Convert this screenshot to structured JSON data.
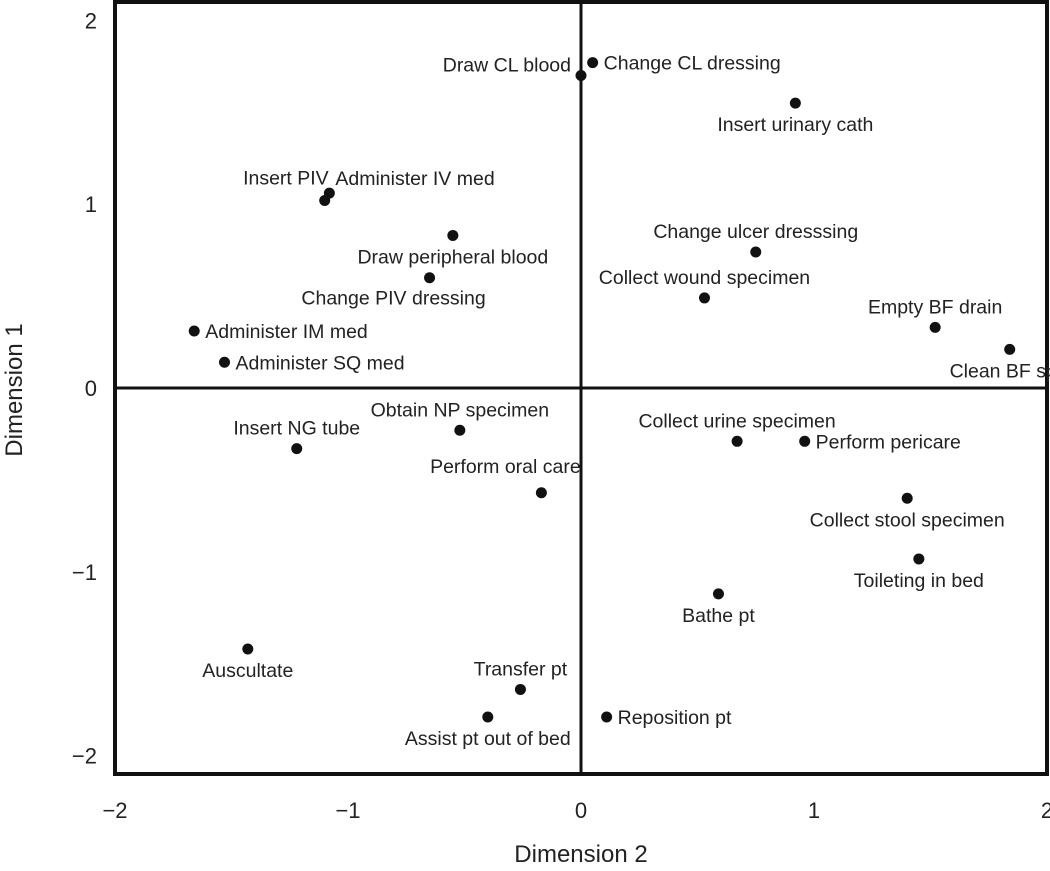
{
  "chart_data": {
    "type": "scatter",
    "title": "",
    "xlabel": "Dimension 2",
    "ylabel": "Dimension 1",
    "xlim": [
      -2,
      2
    ],
    "ylim": [
      -2.1,
      2.1
    ],
    "xticks": [
      -2,
      -1,
      0,
      1,
      2
    ],
    "yticks": [
      -2,
      -1,
      0,
      1,
      2
    ],
    "xtick_labels": [
      "−2",
      "−1",
      "0",
      "1",
      "2"
    ],
    "ytick_labels": [
      "−2",
      "−1",
      "0",
      "1",
      "2"
    ],
    "reference_lines": {
      "x": 0,
      "y": 0
    },
    "colors": {
      "point": "#111111",
      "frame": "#111111",
      "text": "#222222"
    },
    "points": [
      {
        "label": "Draw CL blood",
        "x": 0.0,
        "y": 1.7,
        "label_pos": "left"
      },
      {
        "label": "Change CL dressing",
        "x": 0.05,
        "y": 1.77,
        "label_pos": "right"
      },
      {
        "label": "Insert urinary cath",
        "x": 0.92,
        "y": 1.55,
        "label_pos": "below"
      },
      {
        "label": "Insert PIV",
        "x": -1.1,
        "y": 1.02,
        "label_pos": "upper-left"
      },
      {
        "label": "Administer IV med",
        "x": -1.08,
        "y": 1.06,
        "label_pos": "upper-right"
      },
      {
        "label": "Change ulcer dresssing",
        "x": 0.75,
        "y": 0.74,
        "label_pos": "above"
      },
      {
        "label": "Draw peripheral blood",
        "x": -0.55,
        "y": 0.83,
        "label_pos": "below"
      },
      {
        "label": "Change PIV dressing",
        "x": -0.65,
        "y": 0.6,
        "label_pos": "below-left"
      },
      {
        "label": "Collect wound specimen",
        "x": 0.53,
        "y": 0.49,
        "label_pos": "above"
      },
      {
        "label": "Empty BF drain",
        "x": 1.52,
        "y": 0.33,
        "label_pos": "above"
      },
      {
        "label": "Clean BF spill",
        "x": 1.84,
        "y": 0.21,
        "label_pos": "below"
      },
      {
        "label": "Administer IM med",
        "x": -1.66,
        "y": 0.31,
        "label_pos": "right"
      },
      {
        "label": "Administer SQ med",
        "x": -1.53,
        "y": 0.14,
        "label_pos": "right"
      },
      {
        "label": "Insert NG tube",
        "x": -1.22,
        "y": -0.33,
        "label_pos": "above"
      },
      {
        "label": "Obtain NP specimen",
        "x": -0.52,
        "y": -0.23,
        "label_pos": "above"
      },
      {
        "label": "Perform oral care",
        "x": -0.17,
        "y": -0.57,
        "label_pos": "above-left"
      },
      {
        "label": "Collect urine specimen",
        "x": 0.67,
        "y": -0.29,
        "label_pos": "above"
      },
      {
        "label": "Perform pericare",
        "x": 0.96,
        "y": -0.29,
        "label_pos": "right"
      },
      {
        "label": "Collect stool specimen",
        "x": 1.4,
        "y": -0.6,
        "label_pos": "below"
      },
      {
        "label": "Toileting in bed",
        "x": 1.45,
        "y": -0.93,
        "label_pos": "below"
      },
      {
        "label": "Bathe pt",
        "x": 0.59,
        "y": -1.12,
        "label_pos": "below"
      },
      {
        "label": "Auscultate",
        "x": -1.43,
        "y": -1.42,
        "label_pos": "below"
      },
      {
        "label": "Transfer pt",
        "x": -0.26,
        "y": -1.64,
        "label_pos": "above"
      },
      {
        "label": "Assist pt out of bed",
        "x": -0.4,
        "y": -1.79,
        "label_pos": "below"
      },
      {
        "label": "Reposition pt",
        "x": 0.11,
        "y": -1.79,
        "label_pos": "right"
      }
    ]
  }
}
